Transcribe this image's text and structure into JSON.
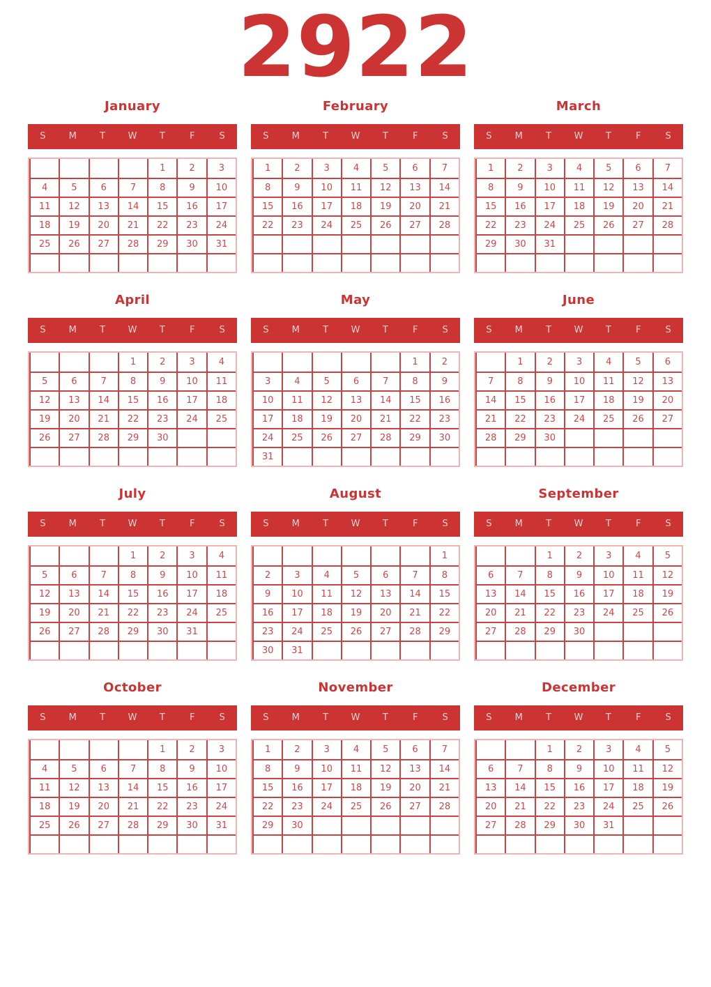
{
  "title": "2922",
  "weekdays": [
    "S",
    "M",
    "T",
    "W",
    "T",
    "F",
    "S"
  ],
  "colors": {
    "primary": "#cc3333",
    "date_text": "#cc4747",
    "grid_line": "#c84444",
    "outer_border": "#efb3b3",
    "header_text": "#f0d2d2",
    "background": "#ffffff"
  },
  "months": [
    {
      "name": "January",
      "weeks": [
        [
          "",
          "",
          "",
          "",
          "1",
          "2",
          "3"
        ],
        [
          "4",
          "5",
          "6",
          "7",
          "8",
          "9",
          "10"
        ],
        [
          "11",
          "12",
          "13",
          "14",
          "15",
          "16",
          "17"
        ],
        [
          "18",
          "19",
          "20",
          "21",
          "22",
          "23",
          "24"
        ],
        [
          "25",
          "26",
          "27",
          "28",
          "29",
          "30",
          "31"
        ],
        [
          "",
          "",
          "",
          "",
          "",
          "",
          ""
        ]
      ]
    },
    {
      "name": "February",
      "weeks": [
        [
          "1",
          "2",
          "3",
          "4",
          "5",
          "6",
          "7"
        ],
        [
          "8",
          "9",
          "10",
          "11",
          "12",
          "13",
          "14"
        ],
        [
          "15",
          "16",
          "17",
          "18",
          "19",
          "20",
          "21"
        ],
        [
          "22",
          "23",
          "24",
          "25",
          "26",
          "27",
          "28"
        ],
        [
          "",
          "",
          "",
          "",
          "",
          "",
          ""
        ],
        [
          "",
          "",
          "",
          "",
          "",
          "",
          ""
        ]
      ]
    },
    {
      "name": "March",
      "weeks": [
        [
          "1",
          "2",
          "3",
          "4",
          "5",
          "6",
          "7"
        ],
        [
          "8",
          "9",
          "10",
          "11",
          "12",
          "13",
          "14"
        ],
        [
          "15",
          "16",
          "17",
          "18",
          "19",
          "20",
          "21"
        ],
        [
          "22",
          "23",
          "24",
          "25",
          "26",
          "27",
          "28"
        ],
        [
          "29",
          "30",
          "31",
          "",
          "",
          "",
          ""
        ],
        [
          "",
          "",
          "",
          "",
          "",
          "",
          ""
        ]
      ]
    },
    {
      "name": "April",
      "weeks": [
        [
          "",
          "",
          "",
          "1",
          "2",
          "3",
          "4"
        ],
        [
          "5",
          "6",
          "7",
          "8",
          "9",
          "10",
          "11"
        ],
        [
          "12",
          "13",
          "14",
          "15",
          "16",
          "17",
          "18"
        ],
        [
          "19",
          "20",
          "21",
          "22",
          "23",
          "24",
          "25"
        ],
        [
          "26",
          "27",
          "28",
          "29",
          "30",
          "",
          ""
        ],
        [
          "",
          "",
          "",
          "",
          "",
          "",
          ""
        ]
      ]
    },
    {
      "name": "May",
      "weeks": [
        [
          "",
          "",
          "",
          "",
          "",
          "1",
          "2"
        ],
        [
          "3",
          "4",
          "5",
          "6",
          "7",
          "8",
          "9"
        ],
        [
          "10",
          "11",
          "12",
          "13",
          "14",
          "15",
          "16"
        ],
        [
          "17",
          "18",
          "19",
          "20",
          "21",
          "22",
          "23"
        ],
        [
          "24",
          "25",
          "26",
          "27",
          "28",
          "29",
          "30"
        ],
        [
          "31",
          "",
          "",
          "",
          "",
          "",
          ""
        ]
      ]
    },
    {
      "name": "June",
      "weeks": [
        [
          "",
          "1",
          "2",
          "3",
          "4",
          "5",
          "6"
        ],
        [
          "7",
          "8",
          "9",
          "10",
          "11",
          "12",
          "13"
        ],
        [
          "14",
          "15",
          "16",
          "17",
          "18",
          "19",
          "20"
        ],
        [
          "21",
          "22",
          "23",
          "24",
          "25",
          "26",
          "27"
        ],
        [
          "28",
          "29",
          "30",
          "",
          "",
          "",
          ""
        ],
        [
          "",
          "",
          "",
          "",
          "",
          "",
          ""
        ]
      ]
    },
    {
      "name": "July",
      "weeks": [
        [
          "",
          "",
          "",
          "1",
          "2",
          "3",
          "4"
        ],
        [
          "5",
          "6",
          "7",
          "8",
          "9",
          "10",
          "11"
        ],
        [
          "12",
          "13",
          "14",
          "15",
          "16",
          "17",
          "18"
        ],
        [
          "19",
          "20",
          "21",
          "22",
          "23",
          "24",
          "25"
        ],
        [
          "26",
          "27",
          "28",
          "29",
          "30",
          "31",
          ""
        ],
        [
          "",
          "",
          "",
          "",
          "",
          "",
          ""
        ]
      ]
    },
    {
      "name": "August",
      "weeks": [
        [
          "",
          "",
          "",
          "",
          "",
          "",
          "1"
        ],
        [
          "2",
          "3",
          "4",
          "5",
          "6",
          "7",
          "8"
        ],
        [
          "9",
          "10",
          "11",
          "12",
          "13",
          "14",
          "15"
        ],
        [
          "16",
          "17",
          "18",
          "19",
          "20",
          "21",
          "22"
        ],
        [
          "23",
          "24",
          "25",
          "26",
          "27",
          "28",
          "29"
        ],
        [
          "30",
          "31",
          "",
          "",
          "",
          "",
          ""
        ]
      ]
    },
    {
      "name": "September",
      "weeks": [
        [
          "",
          "",
          "1",
          "2",
          "3",
          "4",
          "5"
        ],
        [
          "6",
          "7",
          "8",
          "9",
          "10",
          "11",
          "12"
        ],
        [
          "13",
          "14",
          "15",
          "16",
          "17",
          "18",
          "19"
        ],
        [
          "20",
          "21",
          "22",
          "23",
          "24",
          "25",
          "26"
        ],
        [
          "27",
          "28",
          "29",
          "30",
          "",
          "",
          ""
        ],
        [
          "",
          "",
          "",
          "",
          "",
          "",
          ""
        ]
      ]
    },
    {
      "name": "October",
      "weeks": [
        [
          "",
          "",
          "",
          "",
          "1",
          "2",
          "3"
        ],
        [
          "4",
          "5",
          "6",
          "7",
          "8",
          "9",
          "10"
        ],
        [
          "11",
          "12",
          "13",
          "14",
          "15",
          "16",
          "17"
        ],
        [
          "18",
          "19",
          "20",
          "21",
          "22",
          "23",
          "24"
        ],
        [
          "25",
          "26",
          "27",
          "28",
          "29",
          "30",
          "31"
        ],
        [
          "",
          "",
          "",
          "",
          "",
          "",
          ""
        ]
      ]
    },
    {
      "name": "November",
      "weeks": [
        [
          "1",
          "2",
          "3",
          "4",
          "5",
          "6",
          "7"
        ],
        [
          "8",
          "9",
          "10",
          "11",
          "12",
          "13",
          "14"
        ],
        [
          "15",
          "16",
          "17",
          "18",
          "19",
          "20",
          "21"
        ],
        [
          "22",
          "23",
          "24",
          "25",
          "26",
          "27",
          "28"
        ],
        [
          "29",
          "30",
          "",
          "",
          "",
          "",
          ""
        ],
        [
          "",
          "",
          "",
          "",
          "",
          "",
          ""
        ]
      ]
    },
    {
      "name": "December",
      "weeks": [
        [
          "",
          "",
          "1",
          "2",
          "3",
          "4",
          "5"
        ],
        [
          "6",
          "7",
          "8",
          "9",
          "10",
          "11",
          "12"
        ],
        [
          "13",
          "14",
          "15",
          "16",
          "17",
          "18",
          "19"
        ],
        [
          "20",
          "21",
          "22",
          "23",
          "24",
          "25",
          "26"
        ],
        [
          "27",
          "28",
          "29",
          "30",
          "31",
          "",
          ""
        ],
        [
          "",
          "",
          "",
          "",
          "",
          "",
          ""
        ]
      ]
    }
  ]
}
